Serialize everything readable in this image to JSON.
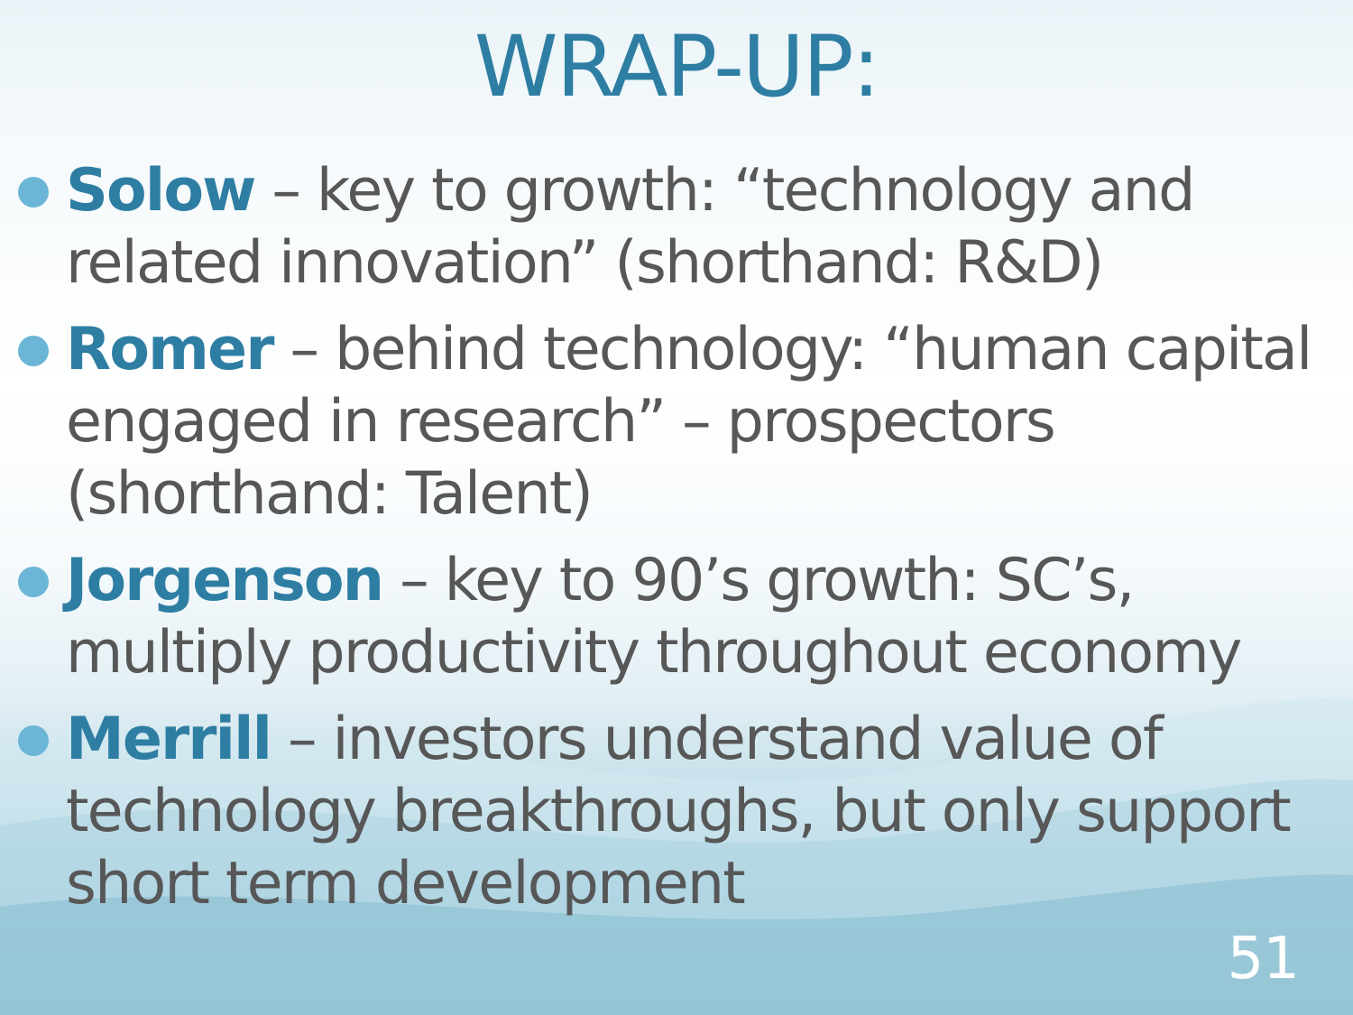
{
  "slide": {
    "title": "WRAP-UP:",
    "bullets": [
      {
        "name": "Solow",
        "text": " – key to growth: “technology and related innovation” (shorthand: R&D)"
      },
      {
        "name": "Romer",
        "text": " – behind technology: “human capital engaged in research” – prospectors (shorthand: Talent)"
      },
      {
        "name": "Jorgenson",
        "text": " – key to 90’s growth: SC’s, multiply productivity throughout economy"
      },
      {
        "name": "Merrill",
        "text": " – investors understand value of technology breakthroughs, but only support short term development"
      }
    ],
    "page_number": "51"
  },
  "colors": {
    "title": "#2e7ea3",
    "body_text": "#575757",
    "bullet_dot": "#6bb6d6",
    "page_number": "#ffffff"
  }
}
